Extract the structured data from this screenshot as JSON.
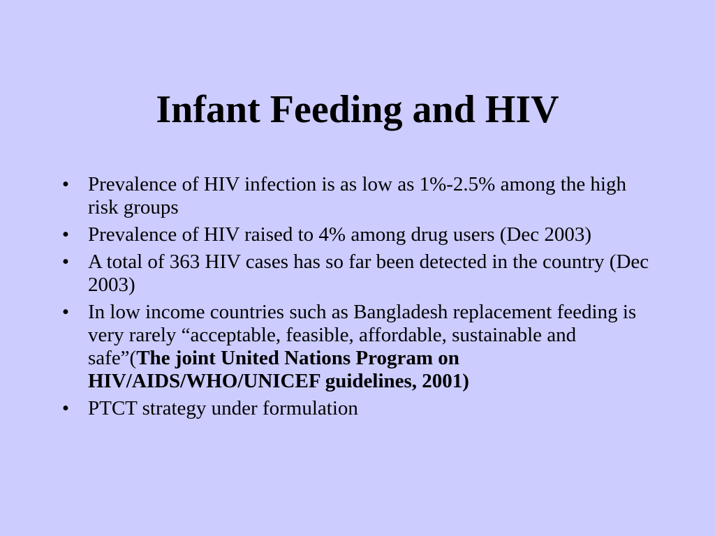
{
  "slide": {
    "title": "Infant Feeding and HIV",
    "bullet_char": "•",
    "bullets": [
      "Prevalence of  HIV infection is as low as 1%-2.5% among the high risk groups",
      "Prevalence of  HIV raised to 4% among drug users    (Dec 2003)",
      "A total of 363 HIV cases has so far been detected in the country (Dec 2003)",
      {
        "text": "In low income countries such as Bangladesh replacement feeding is very rarely “acceptable, feasible, affordable, sustainable and safe”(",
        "bold": "The joint United Nations Program on HIV/AIDS/WHO/UNICEF guidelines, 2001)"
      },
      "PTCT strategy under formulation"
    ]
  },
  "colors": {
    "background": "#ccccff",
    "text": "#000000"
  }
}
